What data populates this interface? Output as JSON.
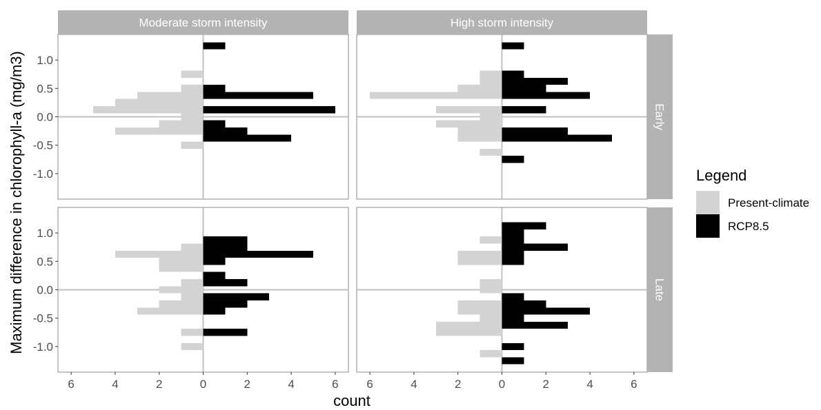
{
  "chart_data": {
    "type": "bar",
    "orientation": "horizontal",
    "subtype": "back-to-back histogram",
    "xlabel": "count",
    "ylabel": "Maximum difference in chlorophyll-a (mg/m3)",
    "xlim": [
      -6.6,
      6.6
    ],
    "ylim": [
      -1.45,
      1.45
    ],
    "x_ticks": [
      -6,
      -4,
      -2,
      0,
      2,
      4,
      6
    ],
    "x_tick_labels": [
      "6",
      "4",
      "2",
      "0",
      "2",
      "4",
      "6"
    ],
    "y_ticks": [
      1.0,
      0.5,
      0.0,
      -0.5,
      -1.0
    ],
    "y_tick_labels": [
      "1.0",
      "0.5",
      "0.0",
      "-0.5",
      "-1.0"
    ],
    "bin_width": 0.125,
    "columns": [
      "Moderate storm intensity",
      "High storm intensity"
    ],
    "rows": [
      "Early",
      "Late"
    ],
    "legend": {
      "title": "Legend",
      "position": "right",
      "entries": [
        {
          "label": "Present-climate",
          "color": "#d3d3d3"
        },
        {
          "label": "RCP8.5",
          "color": "#000000"
        }
      ]
    },
    "colors": {
      "present": "#d3d3d3",
      "rcp": "#000000",
      "strip": "#b3b3b3",
      "zero_line": "#c0c0c0"
    },
    "panels": [
      {
        "column": "Moderate storm intensity",
        "row": "Early",
        "present": {
          "bin_centers": [
            0.75,
            0.5,
            0.375,
            0.25,
            0.125,
            0.0,
            -0.125,
            -0.25,
            -0.5
          ],
          "counts": [
            1,
            1,
            3,
            4,
            5,
            1,
            2,
            4,
            1
          ]
        },
        "rcp85": {
          "bin_centers": [
            1.25,
            0.5,
            0.375,
            0.125,
            -0.125,
            -0.25,
            -0.375
          ],
          "counts": [
            1,
            1,
            5,
            6,
            1,
            2,
            4
          ]
        }
      },
      {
        "column": "High storm intensity",
        "row": "Early",
        "present": {
          "bin_centers": [
            0.75,
            0.625,
            0.5,
            0.375,
            0.125,
            0.0,
            -0.125,
            -0.25,
            -0.375,
            -0.625
          ],
          "counts": [
            1,
            1,
            2,
            6,
            3,
            1,
            3,
            2,
            2,
            1
          ]
        },
        "rcp85": {
          "bin_centers": [
            1.25,
            0.75,
            0.625,
            0.5,
            0.375,
            0.125,
            -0.25,
            -0.375,
            -0.75
          ],
          "counts": [
            1,
            1,
            3,
            2,
            4,
            2,
            3,
            5,
            1
          ]
        }
      },
      {
        "column": "Moderate storm intensity",
        "row": "Late",
        "present": {
          "bin_centers": [
            0.75,
            0.625,
            0.5,
            0.375,
            0.125,
            0.0,
            -0.125,
            -0.25,
            -0.375,
            -0.75,
            -1.0
          ],
          "counts": [
            1,
            4,
            2,
            2,
            1,
            2,
            1,
            2,
            3,
            1,
            1
          ]
        },
        "rcp85": {
          "bin_centers": [
            0.875,
            0.75,
            0.625,
            0.5,
            0.25,
            0.125,
            -0.125,
            -0.25,
            -0.375,
            -0.75
          ],
          "counts": [
            2,
            2,
            5,
            1,
            1,
            2,
            3,
            2,
            1,
            2
          ]
        }
      },
      {
        "column": "High storm intensity",
        "row": "Late",
        "present": {
          "bin_centers": [
            0.875,
            0.625,
            0.5,
            0.125,
            0.0,
            -0.25,
            -0.375,
            -0.5,
            -0.625,
            -0.75,
            -1.125
          ],
          "counts": [
            1,
            2,
            2,
            1,
            1,
            2,
            2,
            1,
            3,
            3,
            1
          ]
        },
        "rcp85": {
          "bin_centers": [
            1.125,
            1.0,
            0.875,
            0.75,
            0.625,
            0.5,
            -0.125,
            -0.25,
            -0.375,
            -0.5,
            -0.625,
            -1.0,
            -1.25
          ],
          "counts": [
            2,
            1,
            1,
            3,
            1,
            1,
            1,
            2,
            4,
            1,
            3,
            1,
            1
          ]
        }
      }
    ]
  }
}
